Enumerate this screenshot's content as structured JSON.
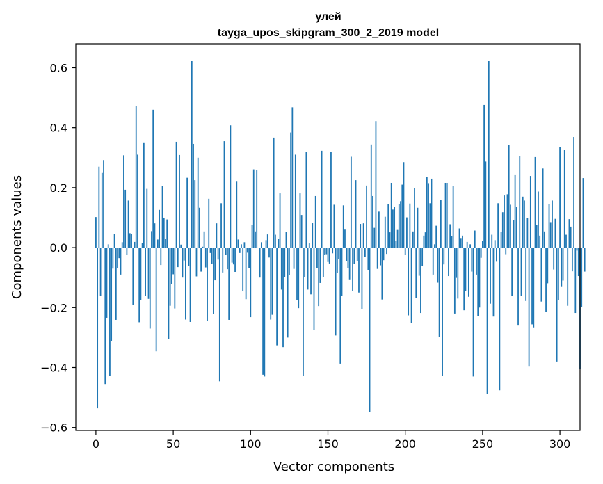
{
  "chart_data": {
    "type": "bar",
    "title": "улей",
    "subtitle": "tayga_upos_skipgram_300_2_2019 model",
    "xlabel": "Vector components",
    "ylabel": "Components values",
    "xlim": [
      -13,
      313
    ],
    "ylim": [
      -0.61,
      0.68
    ],
    "xticks": [
      0,
      50,
      100,
      150,
      200,
      250,
      300
    ],
    "xtick_labels": [
      "0",
      "50",
      "100",
      "150",
      "200",
      "250",
      "300"
    ],
    "yticks": [
      -0.6,
      -0.4,
      -0.2,
      0.0,
      0.2,
      0.4,
      0.6
    ],
    "ytick_labels": [
      "−0.6",
      "−0.4",
      "−0.2",
      "0.0",
      "0.2",
      "0.4",
      "0.6"
    ],
    "bar_color": "#1f77b4",
    "grid": false,
    "values": [
      0.102,
      -0.536,
      0.27,
      -0.16,
      0.249,
      0.292,
      -0.455,
      -0.234,
      0.011,
      -0.427,
      -0.312,
      -0.07,
      0.045,
      -0.241,
      -0.068,
      -0.035,
      -0.09,
      0.018,
      0.308,
      0.193,
      -0.025,
      0.157,
      0.048,
      0.046,
      -0.19,
      0.019,
      0.472,
      0.31,
      -0.249,
      -0.174,
      0.016,
      0.351,
      -0.16,
      0.196,
      -0.171,
      -0.27,
      0.055,
      0.46,
      0.081,
      -0.346,
      0.027,
      0.126,
      -0.058,
      0.205,
      0.1,
      0.028,
      0.094,
      -0.305,
      -0.194,
      -0.121,
      -0.089,
      -0.203,
      0.353,
      -0.065,
      0.309,
      0.01,
      -0.1,
      -0.043,
      -0.24,
      0.233,
      -0.061,
      -0.248,
      0.622,
      0.346,
      0.225,
      -0.096,
      0.3,
      0.133,
      -0.08,
      0.003,
      0.054,
      -0.066,
      -0.244,
      0.163,
      -0.018,
      -0.054,
      -0.222,
      -0.109,
      0.081,
      -0.04,
      -0.446,
      0.148,
      -0.083,
      0.355,
      -0.023,
      -0.072,
      -0.241,
      0.408,
      -0.05,
      -0.056,
      -0.081,
      0.22,
      0.027,
      -0.018,
      0.011,
      -0.146,
      0.018,
      -0.172,
      -0.017,
      -0.069,
      -0.232,
      0.076,
      0.261,
      0.054,
      0.259,
      -0.002,
      -0.1,
      0.018,
      -0.424,
      -0.43,
      0.025,
      0.044,
      -0.033,
      -0.24,
      -0.224,
      0.367,
      0.043,
      -0.326,
      0.03,
      0.181,
      -0.14,
      -0.332,
      -0.099,
      0.053,
      -0.3,
      -0.091,
      0.384,
      0.468,
      -0.071,
      0.31,
      -0.174,
      -0.202,
      0.181,
      0.109,
      -0.429,
      -0.099,
      0.32,
      -0.14,
      0.014,
      -0.156,
      0.082,
      -0.275,
      0.172,
      -0.068,
      -0.195,
      -0.118,
      0.323,
      -0.098,
      -0.023,
      -0.022,
      -0.048,
      -0.053,
      0.32,
      -0.019,
      0.143,
      -0.293,
      -0.084,
      -0.038,
      -0.387,
      -0.16,
      0.141,
      0.06,
      -0.044,
      -0.069,
      -0.106,
      0.303,
      -0.144,
      -0.055,
      0.225,
      -0.045,
      -0.15,
      0.079,
      -0.204,
      0.081,
      -0.032,
      0.207,
      -0.074,
      -0.549,
      0.344,
      0.172,
      0.066,
      0.422,
      -0.071,
      0.12,
      -0.059,
      -0.173,
      -0.042,
      0.103,
      -0.021,
      0.145,
      0.051,
      0.216,
      0.127,
      0.136,
      0.022,
      0.059,
      0.146,
      0.155,
      0.21,
      0.285,
      -0.023,
      0.101,
      -0.226,
      0.147,
      -0.252,
      0.054,
      0.199,
      -0.168,
      0.133,
      -0.094,
      -0.218,
      -0.061,
      0.04,
      0.051,
      0.236,
      0.215,
      0.148,
      0.23,
      -0.09,
      0.011,
      0.073,
      -0.117,
      -0.297,
      0.16,
      -0.427,
      -0.056,
      0.216,
      0.216,
      -0.095,
      0.078,
      0.039,
      0.205,
      -0.22,
      -0.101,
      -0.17,
      0.064,
      0.032,
      0.04,
      -0.209,
      -0.144,
      0.019,
      -0.164,
      0.011,
      -0.08,
      -0.43,
      0.057,
      -0.09,
      -0.228,
      -0.2,
      -0.034,
      0.022,
      0.476,
      0.287,
      -0.487,
      0.623,
      -0.187,
      0.043,
      -0.23,
      0.025,
      -0.047,
      0.148,
      -0.476,
      0.053,
      0.118,
      0.174,
      -0.022,
      0.178,
      0.342,
      0.143,
      -0.16,
      0.091,
      0.244,
      0.136,
      -0.26,
      0.305,
      -0.16,
      0.17,
      0.157,
      -0.178,
      0.099,
      -0.397,
      0.239,
      -0.256,
      -0.266,
      0.302,
      0.075,
      0.187,
      0.04,
      -0.18,
      0.264,
      0.054,
      -0.214,
      -0.119,
      0.145,
      0.085,
      0.157,
      -0.073,
      0.096,
      -0.38,
      -0.175,
      0.336,
      -0.129,
      -0.11,
      0.327,
      0.043,
      -0.194,
      0.095,
      0.07,
      -0.079,
      0.369,
      -0.218,
      -0.01,
      -0.095,
      -0.405,
      -0.197,
      0.232,
      -0.08
    ]
  }
}
